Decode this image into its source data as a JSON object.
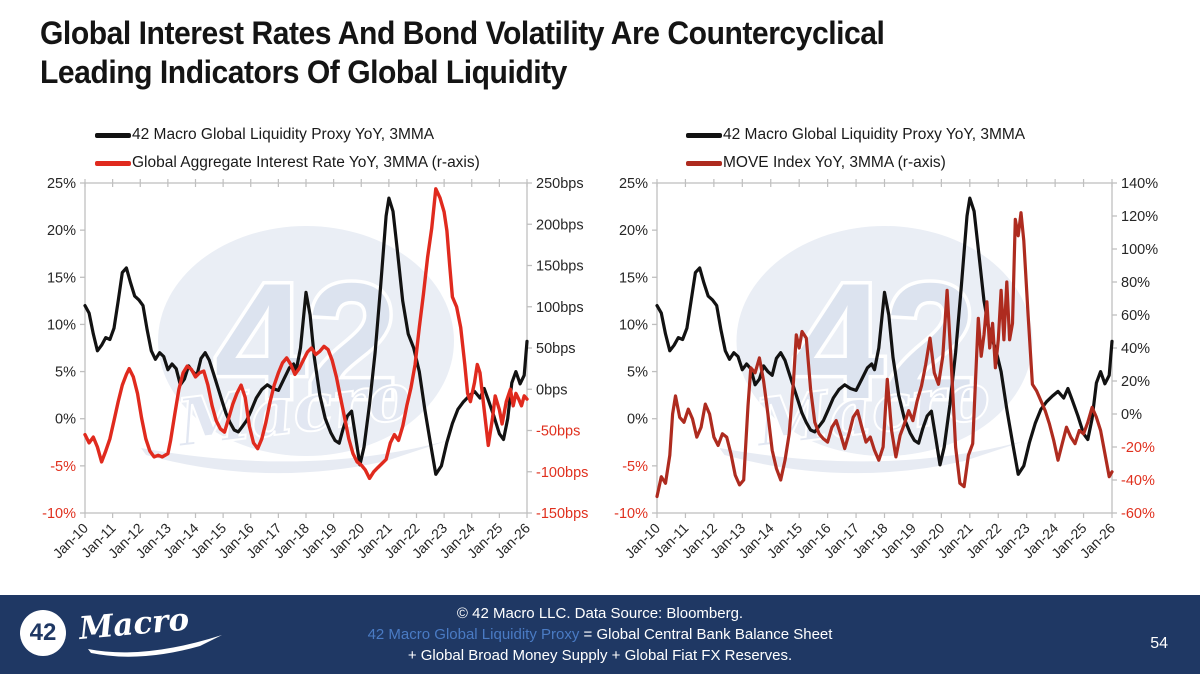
{
  "slide": {
    "title": "Global Interest Rates And Bond Volatility Are Countercyclical\nLeading Indicators Of Global Liquidity",
    "page_number": "54",
    "footer": {
      "line1": "© 42 Macro LLC. Data Source: Bloomberg.",
      "line2_link": "42 Macro Global Liquidity Proxy",
      "line2_rest": " = Global Central Bank Balance Sheet",
      "line3": "+ Global Broad Money Supply + Global Fiat FX Reserves.",
      "bg_color": "#1F3864",
      "link_color": "#4A7BC4"
    },
    "logo": {
      "number": "42",
      "script": "Macro"
    },
    "watermark": {
      "number": "42",
      "script": "Macro"
    },
    "colors": {
      "black_line": "#121212",
      "bright_red_line": "#E02A1E",
      "dark_red_line": "#AE2B1F",
      "axis_gray": "#BFBFBF",
      "tick_text": "#262626",
      "negative_tick_text": "#E0301E"
    }
  },
  "chart_data": [
    {
      "type": "line",
      "x_tick_labels": [
        "Jan-10",
        "Jan-11",
        "Jan-12",
        "Jan-13",
        "Jan-14",
        "Jan-15",
        "Jan-16",
        "Jan-17",
        "Jan-18",
        "Jan-19",
        "Jan-20",
        "Jan-21",
        "Jan-22",
        "Jan-23",
        "Jan-24",
        "Jan-25",
        "Jan-26"
      ],
      "x_range": [
        2010,
        2026
      ],
      "left_axis": {
        "ticks": [
          "25%",
          "20%",
          "15%",
          "10%",
          "5%",
          "0%",
          "-5%",
          "-10%"
        ],
        "max": 25,
        "min": -10
      },
      "right_axis": {
        "ticks": [
          "250bps",
          "200bps",
          "150bps",
          "100bps",
          "50bps",
          "0bps",
          "-50bps",
          "-100bps",
          "-150bps"
        ],
        "max": 250,
        "min": -150
      },
      "series": [
        {
          "name": "42 Macro Global Liquidity Proxy YoY, 3MMA",
          "color": "#121212",
          "axis": "left",
          "width": 3.2,
          "x": [
            2010.0,
            2010.15,
            2010.3,
            2010.45,
            2010.6,
            2010.75,
            2010.9,
            2011.05,
            2011.2,
            2011.35,
            2011.5,
            2011.65,
            2011.8,
            2011.95,
            2012.1,
            2012.25,
            2012.4,
            2012.55,
            2012.7,
            2012.85,
            2013.0,
            2013.15,
            2013.3,
            2013.45,
            2013.6,
            2013.75,
            2013.9,
            2014.05,
            2014.2,
            2014.35,
            2014.5,
            2014.65,
            2014.8,
            2014.95,
            2015.1,
            2015.25,
            2015.4,
            2015.55,
            2015.7,
            2015.85,
            2016.0,
            2016.2,
            2016.4,
            2016.6,
            2016.8,
            2017.0,
            2017.2,
            2017.4,
            2017.55,
            2017.65,
            2017.8,
            2018.0,
            2018.15,
            2018.3,
            2018.5,
            2018.7,
            2018.9,
            2019.05,
            2019.2,
            2019.35,
            2019.5,
            2019.65,
            2019.8,
            2019.95,
            2020.1,
            2020.3,
            2020.5,
            2020.7,
            2020.9,
            2021.0,
            2021.15,
            2021.3,
            2021.5,
            2021.7,
            2021.9,
            2022.1,
            2022.3,
            2022.5,
            2022.7,
            2022.9,
            2023.1,
            2023.3,
            2023.5,
            2023.7,
            2023.9,
            2024.1,
            2024.3,
            2024.45,
            2024.6,
            2024.8,
            2025.0,
            2025.15,
            2025.3,
            2025.45,
            2025.6,
            2025.75,
            2025.9,
            2026.0
          ],
          "y": [
            12.0,
            11.2,
            9.0,
            7.2,
            7.8,
            8.6,
            8.4,
            9.6,
            12.5,
            15.5,
            16.0,
            14.4,
            13.0,
            12.6,
            12.0,
            9.4,
            7.2,
            6.3,
            7.0,
            6.6,
            5.2,
            5.8,
            5.3,
            3.6,
            4.2,
            5.6,
            5.0,
            4.6,
            6.4,
            7.0,
            6.2,
            4.8,
            3.4,
            2.0,
            0.6,
            -0.4,
            -1.2,
            -1.4,
            -0.8,
            -0.2,
            0.8,
            2.2,
            3.1,
            3.6,
            3.2,
            3.0,
            4.2,
            5.4,
            5.8,
            5.2,
            7.5,
            13.4,
            11.0,
            6.5,
            2.5,
            0.0,
            -1.5,
            -2.3,
            -2.6,
            -1.0,
            0.3,
            0.8,
            -2.0,
            -4.9,
            -3.0,
            1.5,
            7.0,
            14.0,
            21.5,
            23.4,
            22.0,
            18.0,
            12.5,
            9.0,
            7.5,
            5.0,
            1.0,
            -2.5,
            -5.9,
            -5.0,
            -2.5,
            -0.5,
            1.0,
            1.8,
            2.4,
            2.9,
            2.2,
            3.2,
            2.0,
            0.3,
            -1.6,
            -2.2,
            0.0,
            3.8,
            5.0,
            3.7,
            4.6,
            8.2
          ]
        },
        {
          "name": "Global Aggregate Interest Rate YoY, 3MMA (r-axis)",
          "color": "#E02A1E",
          "axis": "right",
          "width": 3.4,
          "x": [
            2010.0,
            2010.15,
            2010.3,
            2010.45,
            2010.6,
            2010.75,
            2010.9,
            2011.05,
            2011.2,
            2011.35,
            2011.5,
            2011.6,
            2011.75,
            2011.9,
            2012.05,
            2012.2,
            2012.35,
            2012.5,
            2012.65,
            2012.8,
            2013.0,
            2013.1,
            2013.25,
            2013.4,
            2013.55,
            2013.7,
            2013.85,
            2014.0,
            2014.15,
            2014.3,
            2014.45,
            2014.6,
            2014.75,
            2014.9,
            2015.05,
            2015.2,
            2015.35,
            2015.5,
            2015.65,
            2015.8,
            2015.95,
            2016.1,
            2016.25,
            2016.4,
            2016.55,
            2016.7,
            2016.85,
            2017.0,
            2017.15,
            2017.3,
            2017.45,
            2017.6,
            2017.75,
            2017.9,
            2018.05,
            2018.2,
            2018.35,
            2018.5,
            2018.65,
            2018.8,
            2018.95,
            2019.1,
            2019.25,
            2019.4,
            2019.55,
            2019.7,
            2019.85,
            2020.0,
            2020.15,
            2020.3,
            2020.45,
            2020.6,
            2020.75,
            2020.9,
            2021.05,
            2021.2,
            2021.35,
            2021.5,
            2021.65,
            2021.8,
            2021.95,
            2022.1,
            2022.25,
            2022.4,
            2022.55,
            2022.7,
            2022.85,
            2023.0,
            2023.1,
            2023.2,
            2023.3,
            2023.45,
            2023.6,
            2023.75,
            2023.85,
            2023.95,
            2024.1,
            2024.2,
            2024.3,
            2024.45,
            2024.6,
            2024.75,
            2024.85,
            2025.0,
            2025.1,
            2025.25,
            2025.4,
            2025.5,
            2025.6,
            2025.7,
            2025.8,
            2025.9,
            2026.0
          ],
          "y": [
            -55,
            -65,
            -58,
            -70,
            -88,
            -75,
            -60,
            -38,
            -15,
            5,
            18,
            25,
            15,
            -5,
            -35,
            -60,
            -75,
            -82,
            -80,
            -82,
            -78,
            -62,
            -30,
            0,
            20,
            28,
            24,
            15,
            20,
            22,
            5,
            -20,
            -38,
            -48,
            -52,
            -35,
            -18,
            -5,
            5,
            -10,
            -45,
            -65,
            -72,
            -60,
            -40,
            -15,
            5,
            20,
            32,
            38,
            30,
            18,
            25,
            35,
            45,
            50,
            42,
            46,
            52,
            48,
            35,
            15,
            -10,
            -35,
            -60,
            -78,
            -88,
            -92,
            -98,
            -108,
            -100,
            -95,
            -90,
            -85,
            -65,
            -55,
            -62,
            -45,
            -20,
            2,
            30,
            75,
            115,
            160,
            195,
            243,
            232,
            215,
            192,
            150,
            112,
            100,
            75,
            30,
            -5,
            -15,
            8,
            30,
            20,
            -25,
            -68,
            -35,
            -8,
            -25,
            -42,
            -15,
            0,
            -20,
            -5,
            -12,
            -20,
            -8,
            -12
          ]
        }
      ]
    },
    {
      "type": "line",
      "x_tick_labels": [
        "Jan-10",
        "Jan-11",
        "Jan-12",
        "Jan-13",
        "Jan-14",
        "Jan-15",
        "Jan-16",
        "Jan-17",
        "Jan-18",
        "Jan-19",
        "Jan-20",
        "Jan-21",
        "Jan-22",
        "Jan-23",
        "Jan-24",
        "Jan-25",
        "Jan-26"
      ],
      "x_range": [
        2010,
        2026
      ],
      "left_axis": {
        "ticks": [
          "25%",
          "20%",
          "15%",
          "10%",
          "5%",
          "0%",
          "-5%",
          "-10%"
        ],
        "max": 25,
        "min": -10
      },
      "right_axis": {
        "ticks": [
          "140%",
          "120%",
          "100%",
          "80%",
          "60%",
          "40%",
          "20%",
          "0%",
          "-20%",
          "-40%",
          "-60%"
        ],
        "max": 140,
        "min": -60
      },
      "series": [
        {
          "name": "42 Macro Global Liquidity Proxy YoY, 3MMA",
          "color": "#121212",
          "axis": "left",
          "width": 3.2,
          "x": [
            2010.0,
            2010.15,
            2010.3,
            2010.45,
            2010.6,
            2010.75,
            2010.9,
            2011.05,
            2011.2,
            2011.35,
            2011.5,
            2011.65,
            2011.8,
            2011.95,
            2012.1,
            2012.25,
            2012.4,
            2012.55,
            2012.7,
            2012.85,
            2013.0,
            2013.15,
            2013.3,
            2013.45,
            2013.6,
            2013.75,
            2013.9,
            2014.05,
            2014.2,
            2014.35,
            2014.5,
            2014.65,
            2014.8,
            2014.95,
            2015.1,
            2015.25,
            2015.4,
            2015.55,
            2015.7,
            2015.85,
            2016.0,
            2016.2,
            2016.4,
            2016.6,
            2016.8,
            2017.0,
            2017.2,
            2017.4,
            2017.55,
            2017.65,
            2017.8,
            2018.0,
            2018.15,
            2018.3,
            2018.5,
            2018.7,
            2018.9,
            2019.05,
            2019.2,
            2019.35,
            2019.5,
            2019.65,
            2019.8,
            2019.95,
            2020.1,
            2020.3,
            2020.5,
            2020.7,
            2020.9,
            2021.0,
            2021.15,
            2021.3,
            2021.5,
            2021.7,
            2021.9,
            2022.1,
            2022.3,
            2022.5,
            2022.7,
            2022.9,
            2023.1,
            2023.3,
            2023.5,
            2023.7,
            2023.9,
            2024.1,
            2024.3,
            2024.45,
            2024.6,
            2024.8,
            2025.0,
            2025.15,
            2025.3,
            2025.45,
            2025.6,
            2025.75,
            2025.9,
            2026.0
          ],
          "y": [
            12.0,
            11.2,
            9.0,
            7.2,
            7.8,
            8.6,
            8.4,
            9.6,
            12.5,
            15.5,
            16.0,
            14.4,
            13.0,
            12.6,
            12.0,
            9.4,
            7.2,
            6.3,
            7.0,
            6.6,
            5.2,
            5.8,
            5.3,
            3.6,
            4.2,
            5.6,
            5.0,
            4.6,
            6.4,
            7.0,
            6.2,
            4.8,
            3.4,
            2.0,
            0.6,
            -0.4,
            -1.2,
            -1.4,
            -0.8,
            -0.2,
            0.8,
            2.2,
            3.1,
            3.6,
            3.2,
            3.0,
            4.2,
            5.4,
            5.8,
            5.2,
            7.5,
            13.4,
            11.0,
            6.5,
            2.5,
            0.0,
            -1.5,
            -2.3,
            -2.6,
            -1.0,
            0.3,
            0.8,
            -2.0,
            -4.9,
            -3.0,
            1.5,
            7.0,
            14.0,
            21.5,
            23.4,
            22.0,
            18.0,
            12.5,
            9.0,
            7.5,
            5.0,
            1.0,
            -2.5,
            -5.9,
            -5.0,
            -2.5,
            -0.5,
            1.0,
            1.8,
            2.4,
            2.9,
            2.2,
            3.2,
            2.0,
            0.3,
            -1.6,
            -2.2,
            0.0,
            3.8,
            5.0,
            3.7,
            4.6,
            8.2
          ]
        },
        {
          "name": "MOVE Index YoY, 3MMA (r-axis)",
          "color": "#AE2B1F",
          "axis": "right",
          "width": 3.2,
          "x": [
            2010.0,
            2010.15,
            2010.3,
            2010.45,
            2010.55,
            2010.65,
            2010.8,
            2010.95,
            2011.1,
            2011.25,
            2011.4,
            2011.55,
            2011.7,
            2011.85,
            2012.0,
            2012.15,
            2012.3,
            2012.45,
            2012.6,
            2012.75,
            2012.9,
            2013.05,
            2013.2,
            2013.3,
            2013.45,
            2013.6,
            2013.75,
            2013.9,
            2014.05,
            2014.2,
            2014.35,
            2014.5,
            2014.65,
            2014.8,
            2014.9,
            2015.0,
            2015.1,
            2015.25,
            2015.4,
            2015.55,
            2015.7,
            2015.85,
            2016.0,
            2016.15,
            2016.3,
            2016.45,
            2016.6,
            2016.75,
            2016.9,
            2017.05,
            2017.2,
            2017.35,
            2017.5,
            2017.65,
            2017.8,
            2017.95,
            2018.1,
            2018.25,
            2018.4,
            2018.55,
            2018.7,
            2018.85,
            2019.0,
            2019.15,
            2019.3,
            2019.45,
            2019.6,
            2019.75,
            2019.9,
            2020.05,
            2020.2,
            2020.35,
            2020.5,
            2020.65,
            2020.8,
            2020.95,
            2021.1,
            2021.2,
            2021.3,
            2021.4,
            2021.5,
            2021.6,
            2021.7,
            2021.8,
            2021.9,
            2022.0,
            2022.1,
            2022.2,
            2022.3,
            2022.4,
            2022.5,
            2022.6,
            2022.7,
            2022.8,
            2022.9,
            2023.05,
            2023.2,
            2023.35,
            2023.5,
            2023.65,
            2023.8,
            2023.95,
            2024.1,
            2024.25,
            2024.4,
            2024.55,
            2024.7,
            2024.85,
            2025.0,
            2025.15,
            2025.3,
            2025.45,
            2025.6,
            2025.75,
            2025.9,
            2026.0
          ],
          "y": [
            -50,
            -38,
            -42,
            -25,
            0,
            11,
            -2,
            -5,
            3,
            -3,
            -14,
            -8,
            6,
            0,
            -14,
            -19,
            -12,
            -14,
            -24,
            -37,
            -43,
            -40,
            5,
            28,
            25,
            34,
            20,
            0,
            -22,
            -33,
            -40,
            -28,
            -12,
            20,
            48,
            40,
            50,
            46,
            15,
            -5,
            -12,
            -15,
            -17,
            -8,
            -4,
            -12,
            -21,
            -12,
            -2,
            2,
            -8,
            -17,
            -14,
            -22,
            -28,
            -20,
            21,
            -10,
            -26,
            -13,
            -6,
            2,
            -4,
            8,
            17,
            30,
            46,
            25,
            18,
            35,
            75,
            30,
            -20,
            -42,
            -44,
            -25,
            -18,
            20,
            58,
            35,
            48,
            68,
            40,
            55,
            28,
            45,
            75,
            45,
            80,
            45,
            55,
            118,
            108,
            122,
            105,
            60,
            18,
            14,
            8,
            2,
            -6,
            -16,
            -28,
            -18,
            -8,
            -14,
            -18,
            -10,
            -12,
            -5,
            4,
            -2,
            -10,
            -24,
            -38,
            -35
          ]
        }
      ]
    }
  ]
}
